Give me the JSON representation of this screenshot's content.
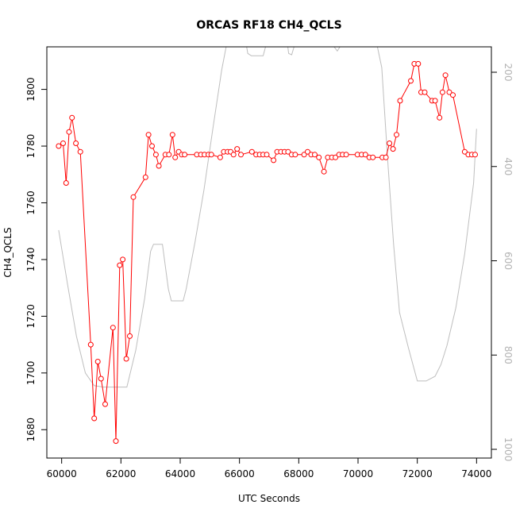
{
  "chart_data": {
    "type": "line",
    "title": "ORCAS RF18 CH4_QCLS",
    "xlabel": "UTC Seconds",
    "ylabel": "CH4_QCLS",
    "xlim": [
      59500,
      74500
    ],
    "ylim": [
      1670,
      1815
    ],
    "x_ticks": [
      60000,
      62000,
      64000,
      66000,
      68000,
      70000,
      72000,
      74000
    ],
    "y_ticks": [
      1680,
      1700,
      1720,
      1740,
      1760,
      1780,
      1800
    ],
    "right_axis": {
      "label": "",
      "reversed": true,
      "ticks": [
        200,
        400,
        600,
        800,
        1000
      ],
      "tick_color": "#b3b3b3"
    },
    "series": [
      {
        "color": "#ff0000",
        "marker": "open-circle",
        "points": [
          [
            59900,
            1780
          ],
          [
            60050,
            1781
          ],
          [
            60150,
            1767
          ],
          [
            60250,
            1785
          ],
          [
            60350,
            1790
          ],
          [
            60480,
            1781
          ],
          [
            60630,
            1778
          ],
          [
            60980,
            1710
          ],
          [
            61100,
            1684
          ],
          [
            61220,
            1704
          ],
          [
            61330,
            1698
          ],
          [
            61470,
            1689
          ],
          [
            61730,
            1716
          ],
          [
            61830,
            1676
          ],
          [
            61960,
            1738
          ],
          [
            62060,
            1740
          ],
          [
            62180,
            1705
          ],
          [
            62300,
            1713
          ],
          [
            62420,
            1762
          ],
          [
            62830,
            1769
          ],
          [
            62930,
            1784
          ],
          [
            63050,
            1780
          ],
          [
            63180,
            1777
          ],
          [
            63280,
            1773
          ],
          [
            63500,
            1777
          ],
          [
            63620,
            1777
          ],
          [
            63740,
            1784
          ],
          [
            63830,
            1776
          ],
          [
            63950,
            1778
          ],
          [
            64050,
            1777
          ],
          [
            64150,
            1777
          ],
          [
            64560,
            1777
          ],
          [
            64700,
            1777
          ],
          [
            64820,
            1777
          ],
          [
            64950,
            1777
          ],
          [
            65050,
            1777
          ],
          [
            65350,
            1776
          ],
          [
            65470,
            1778
          ],
          [
            65600,
            1778
          ],
          [
            65700,
            1778
          ],
          [
            65800,
            1777
          ],
          [
            65920,
            1779
          ],
          [
            66050,
            1777
          ],
          [
            66420,
            1778
          ],
          [
            66560,
            1777
          ],
          [
            66680,
            1777
          ],
          [
            66800,
            1777
          ],
          [
            66920,
            1777
          ],
          [
            67150,
            1775
          ],
          [
            67270,
            1778
          ],
          [
            67400,
            1778
          ],
          [
            67520,
            1778
          ],
          [
            67640,
            1778
          ],
          [
            67760,
            1777
          ],
          [
            67880,
            1777
          ],
          [
            68180,
            1777
          ],
          [
            68300,
            1778
          ],
          [
            68420,
            1777
          ],
          [
            68540,
            1777
          ],
          [
            68680,
            1776
          ],
          [
            68850,
            1771
          ],
          [
            68980,
            1776
          ],
          [
            69120,
            1776
          ],
          [
            69240,
            1776
          ],
          [
            69360,
            1777
          ],
          [
            69480,
            1777
          ],
          [
            69600,
            1777
          ],
          [
            69980,
            1777
          ],
          [
            70120,
            1777
          ],
          [
            70250,
            1777
          ],
          [
            70380,
            1776
          ],
          [
            70500,
            1776
          ],
          [
            70820,
            1776
          ],
          [
            70940,
            1776
          ],
          [
            71060,
            1781
          ],
          [
            71180,
            1779
          ],
          [
            71300,
            1784
          ],
          [
            71420,
            1796
          ],
          [
            71780,
            1803
          ],
          [
            71900,
            1809
          ],
          [
            72030,
            1809
          ],
          [
            72130,
            1799
          ],
          [
            72250,
            1799
          ],
          [
            72500,
            1796
          ],
          [
            72600,
            1796
          ],
          [
            72750,
            1790
          ],
          [
            72850,
            1799
          ],
          [
            72950,
            1805
          ],
          [
            73080,
            1799
          ],
          [
            73200,
            1798
          ],
          [
            73600,
            1778
          ],
          [
            73720,
            1777
          ],
          [
            73840,
            1777
          ],
          [
            73950,
            1777
          ]
        ]
      },
      {
        "color": "#bebebe",
        "axis": "right",
        "points": [
          [
            59900,
            535
          ],
          [
            60200,
            650
          ],
          [
            60500,
            760
          ],
          [
            60800,
            838
          ],
          [
            61100,
            865
          ],
          [
            61400,
            868
          ],
          [
            61800,
            868
          ],
          [
            62200,
            868
          ],
          [
            62500,
            790
          ],
          [
            62800,
            680
          ],
          [
            63000,
            580
          ],
          [
            63100,
            565
          ],
          [
            63400,
            565
          ],
          [
            63600,
            660
          ],
          [
            63700,
            685
          ],
          [
            63900,
            685
          ],
          [
            64100,
            685
          ],
          [
            64200,
            660
          ],
          [
            64500,
            560
          ],
          [
            64800,
            450
          ],
          [
            65100,
            320
          ],
          [
            65400,
            195
          ],
          [
            65600,
            130
          ],
          [
            66000,
            130
          ],
          [
            66200,
            130
          ],
          [
            66280,
            160
          ],
          [
            66400,
            165
          ],
          [
            66800,
            165
          ],
          [
            66950,
            130
          ],
          [
            67400,
            130
          ],
          [
            67600,
            130
          ],
          [
            67660,
            160
          ],
          [
            67760,
            163
          ],
          [
            67920,
            130
          ],
          [
            68300,
            130
          ],
          [
            69000,
            130
          ],
          [
            69300,
            155
          ],
          [
            69500,
            135
          ],
          [
            69700,
            130
          ],
          [
            70000,
            130
          ],
          [
            70400,
            130
          ],
          [
            70600,
            130
          ],
          [
            70800,
            190
          ],
          [
            71000,
            385
          ],
          [
            71200,
            565
          ],
          [
            71400,
            710
          ],
          [
            71700,
            785
          ],
          [
            72000,
            855
          ],
          [
            72300,
            855
          ],
          [
            72600,
            845
          ],
          [
            72800,
            820
          ],
          [
            73000,
            780
          ],
          [
            73300,
            700
          ],
          [
            73600,
            585
          ],
          [
            73900,
            435
          ],
          [
            74000,
            320
          ]
        ]
      }
    ]
  }
}
